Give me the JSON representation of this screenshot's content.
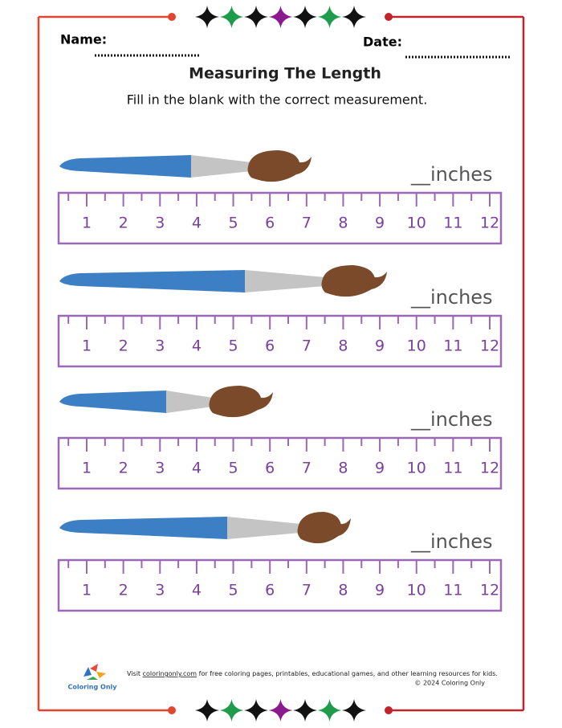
{
  "header": {
    "name_label": "Name:",
    "date_label": "Date:",
    "title": "Measuring The Length",
    "instructions": "Fill in the blank with the correct measurement."
  },
  "ruler": {
    "labels": [
      "1",
      "2",
      "3",
      "4",
      "5",
      "6",
      "7",
      "8",
      "9",
      "10",
      "11",
      "12"
    ]
  },
  "items": [
    {
      "answer": "__inches"
    },
    {
      "answer": "__inches"
    },
    {
      "answer": "__inches"
    },
    {
      "answer": "__inches"
    }
  ],
  "footer": {
    "logo_text": "Coloring Only",
    "visit_prefix": "Visit",
    "link": "coloringonly.com",
    "visit_suffix": "for free coloring pages, printables, educational games, and other learning resources for kids.",
    "copyright": "© 2024 Coloring Only"
  }
}
